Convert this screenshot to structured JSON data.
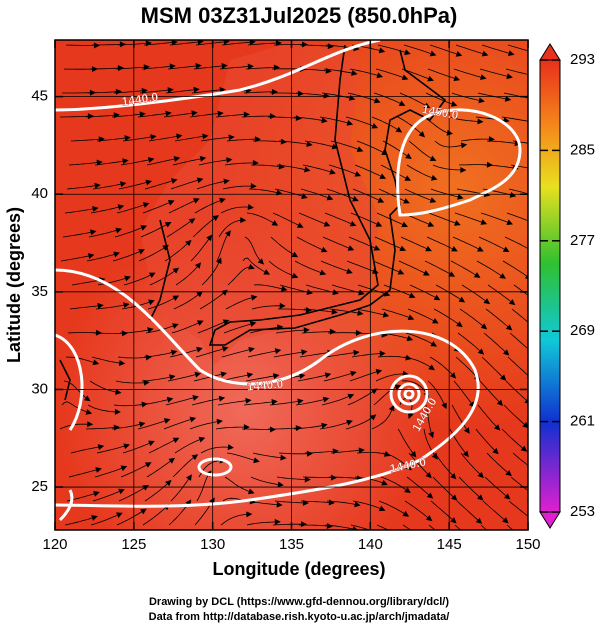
{
  "chart_data": {
    "type": "map",
    "title": "MSM 03Z31Jul2025 (850.0hPa)",
    "xlabel": "Longitude (degrees)",
    "ylabel": "Latitude  (degrees)",
    "xlim": [
      120,
      150
    ],
    "ylim": [
      22.8,
      47.9
    ],
    "xticks": [
      120,
      125,
      130,
      135,
      140,
      145,
      150
    ],
    "yticks": [
      25,
      30,
      35,
      40,
      45
    ],
    "grid": true,
    "colorbar": {
      "lim": [
        253,
        293
      ],
      "ticks": [
        253,
        261,
        269,
        277,
        285,
        293
      ]
    },
    "contour_labels": [
      "1440.0",
      "1450.0",
      "1440.0",
      "1440.0",
      "1440.0"
    ],
    "notes": [
      "Drawing by DCL (https://www.gfd-dennou.org/library/dcl/)",
      "Data from http://database.rish.kyoto-u.ac.jp/arch/jmadata/"
    ]
  }
}
